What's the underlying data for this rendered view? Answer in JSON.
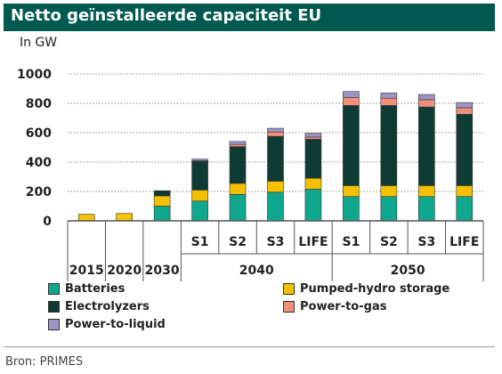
{
  "title": "Netto geïnstalleerde capaciteit EU",
  "unit_label": "In GW",
  "source": "Bron: PRIMES",
  "colors": {
    "title_bg": "#00594f",
    "batteries": "#0fa88e",
    "pumped_hydro": "#f5c000",
    "electrolyzers": "#0e3b33",
    "power_to_gas": "#f0907a",
    "power_to_liquid": "#9e94c8"
  },
  "chart_data": {
    "type": "bar",
    "stacked": true,
    "ylim": [
      0,
      1000
    ],
    "yticks": [
      0,
      200,
      400,
      600,
      800,
      1000
    ],
    "grid": true,
    "legend_position": "bottom",
    "categories": [
      "2015",
      "2020",
      "2030",
      "S1",
      "S2",
      "S3",
      "LIFE",
      "S1",
      "S2",
      "S3",
      "LIFE"
    ],
    "groups": [
      {
        "label": "2015",
        "categories": [
          "2015"
        ]
      },
      {
        "label": "2020",
        "categories": [
          "2020"
        ]
      },
      {
        "label": "2030",
        "categories": [
          "2030"
        ]
      },
      {
        "label": "2040",
        "categories": [
          "S1",
          "S2",
          "S3",
          "LIFE"
        ]
      },
      {
        "label": "2050",
        "categories": [
          "S1",
          "S2",
          "S3",
          "LIFE"
        ]
      }
    ],
    "series": [
      {
        "name": "Batteries",
        "color_key": "batteries",
        "values": [
          0,
          0,
          100,
          135,
          180,
          195,
          215,
          165,
          165,
          165,
          165
        ]
      },
      {
        "name": "Pumped-hydro storage",
        "color_key": "pumped_hydro",
        "values": [
          45,
          50,
          70,
          75,
          75,
          75,
          75,
          75,
          75,
          75,
          75
        ]
      },
      {
        "name": "Electrolyzers",
        "color_key": "electrolyzers",
        "values": [
          0,
          0,
          35,
          195,
          250,
          305,
          265,
          545,
          545,
          535,
          485
        ]
      },
      {
        "name": "Power-to-gas",
        "color_key": "power_to_gas",
        "values": [
          0,
          0,
          0,
          5,
          15,
          30,
          15,
          55,
          50,
          50,
          45
        ]
      },
      {
        "name": "Power-to-liquid",
        "color_key": "power_to_liquid",
        "values": [
          0,
          0,
          0,
          10,
          20,
          25,
          25,
          40,
          35,
          35,
          35
        ]
      }
    ]
  }
}
